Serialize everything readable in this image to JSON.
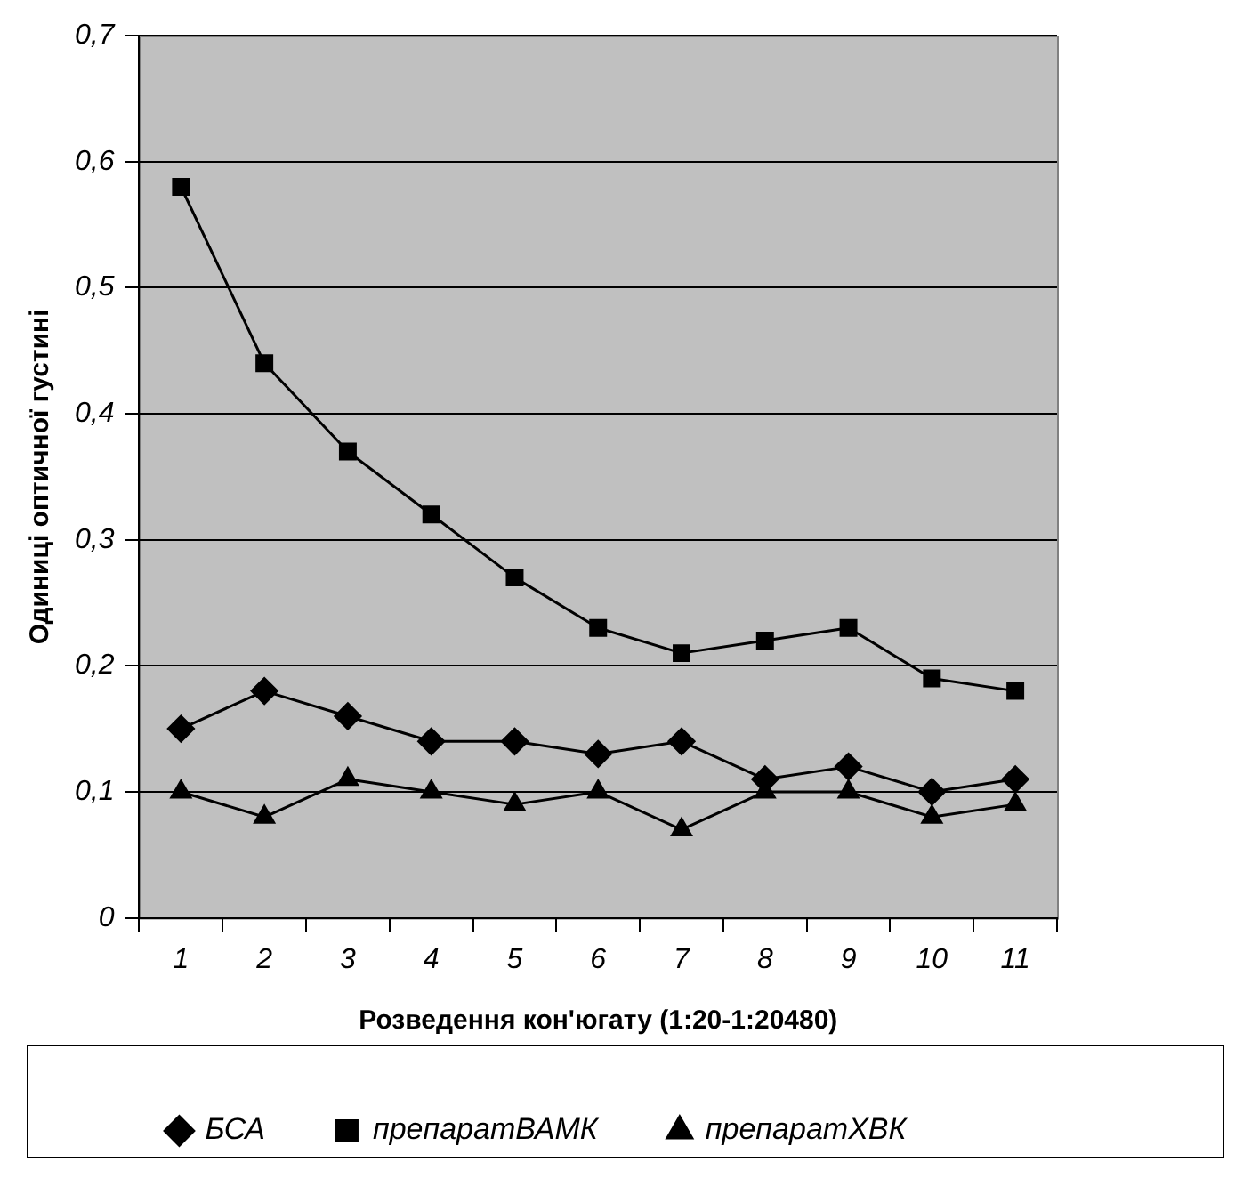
{
  "chart_data": {
    "type": "line",
    "xlabel": "Розведення кон'югату (1:20-1:20480)",
    "ylabel": "Одиниці оптичної густині",
    "categories": [
      "1",
      "2",
      "3",
      "4",
      "5",
      "6",
      "7",
      "8",
      "9",
      "10",
      "11"
    ],
    "series": [
      {
        "name": "БСА",
        "color": "#000000",
        "marker": "diamond",
        "values": [
          0.15,
          0.18,
          0.16,
          0.14,
          0.14,
          0.13,
          0.14,
          0.11,
          0.12,
          0.1,
          0.11
        ]
      },
      {
        "name": "препаратВАМК",
        "color": "#000000",
        "marker": "square",
        "values": [
          0.58,
          0.44,
          0.37,
          0.32,
          0.27,
          0.23,
          0.21,
          0.22,
          0.23,
          0.19,
          0.18
        ]
      },
      {
        "name": "препаратХВК",
        "color": "#000000",
        "marker": "triangle",
        "values": [
          0.1,
          0.08,
          0.11,
          0.1,
          0.09,
          0.1,
          0.07,
          0.1,
          0.1,
          0.08,
          0.09
        ]
      }
    ],
    "ylim": [
      0,
      0.7
    ],
    "yticks": [
      0,
      {
        "value": 0.1,
        "label": "0,1"
      },
      {
        "value": 0.2,
        "label": "0,2"
      },
      {
        "value": 0.3,
        "label": "0,3"
      },
      {
        "value": 0.4,
        "label": "0,4"
      },
      {
        "value": 0.5,
        "label": "0,5"
      },
      {
        "value": 0.6,
        "label": "0,6"
      },
      {
        "value": 0.7,
        "label": "0,7"
      }
    ],
    "grid": "y",
    "legend": "bottom",
    "line_style": "solid"
  }
}
